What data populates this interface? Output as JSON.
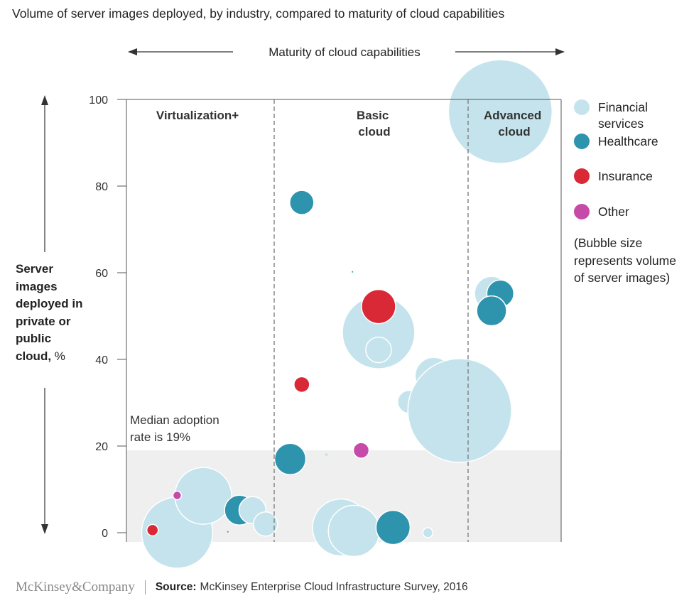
{
  "title": "Volume of server images deployed, by industry, compared to maturity of cloud capabilities",
  "x_axis_label": "Maturity of cloud capabilities",
  "y_axis_label": "Server images deployed in private or public cloud,",
  "y_axis_unit": "%",
  "zones": [
    {
      "lines": [
        "Virtualization+"
      ]
    },
    {
      "lines": [
        "Basic",
        "cloud"
      ]
    },
    {
      "lines": [
        "Advanced",
        "cloud"
      ]
    }
  ],
  "median_note_lines": [
    "Median adoption",
    "rate is 19%"
  ],
  "legend": {
    "items": [
      {
        "label": "Financial services",
        "color": "#c5e3ec"
      },
      {
        "label": "Healthcare",
        "color": "#2e93ad"
      },
      {
        "label": "Insurance",
        "color": "#d92836"
      },
      {
        "label": "Other",
        "color": "#c64aa8"
      }
    ],
    "note": "(Bubble size represents volume of server images)"
  },
  "footer": {
    "brand": "McKinsey&Company",
    "source_label": "Source:",
    "source_text": "McKinsey Enterprise Cloud Infrastructure Survey, 2016"
  },
  "chart_data": {
    "type": "scatter",
    "title": "Volume of server images deployed, by industry, compared to maturity of cloud capabilities",
    "xlabel": "Maturity of cloud capabilities",
    "ylabel": "Server images deployed in private or public cloud, %",
    "ylim": [
      0,
      100
    ],
    "yticks": [
      0,
      20,
      40,
      60,
      80,
      100
    ],
    "median": 19,
    "grid": false,
    "legend_position": "right",
    "colors": {
      "Financial services": "#c5e3ec",
      "Healthcare": "#2e93ad",
      "Insurance": "#d92836",
      "Other": "#c64aa8"
    },
    "zones": [
      "Virtualization+",
      "Basic cloud",
      "Advanced cloud"
    ],
    "points": [
      {
        "industry": "Financial services",
        "maturity": 1.35,
        "y": 0,
        "size": 50
      },
      {
        "industry": "Financial services",
        "maturity": 1.53,
        "y": 8.5,
        "size": 40
      },
      {
        "industry": "Healthcare",
        "maturity": 1.78,
        "y": 5.2,
        "size": 21
      },
      {
        "industry": "Financial services",
        "maturity": 1.87,
        "y": 5.2,
        "size": 19
      },
      {
        "industry": "Financial services",
        "maturity": 1.96,
        "y": 2,
        "size": 17
      },
      {
        "industry": "Insurance",
        "maturity": 1.18,
        "y": 0.6,
        "size": 8
      },
      {
        "industry": "Other",
        "maturity": 1.35,
        "y": 8.6,
        "size": 6
      },
      {
        "industry": "Healthcare",
        "maturity": 1.7,
        "y": 0.2,
        "size": 1
      },
      {
        "industry": "Financial services",
        "maturity": 2.48,
        "y": 1.2,
        "size": 40
      },
      {
        "industry": "Financial services",
        "maturity": 2.57,
        "y": 0.4,
        "size": 36
      },
      {
        "industry": "Healthcare",
        "maturity": 2.84,
        "y": 1.2,
        "size": 24
      },
      {
        "industry": "Financial services",
        "maturity": 3.08,
        "y": 0,
        "size": 7
      },
      {
        "industry": "Healthcare",
        "maturity": 2.13,
        "y": 17,
        "size": 22
      },
      {
        "industry": "Financial services",
        "maturity": 2.38,
        "y": 18,
        "size": 2
      },
      {
        "industry": "Other",
        "maturity": 2.62,
        "y": 19,
        "size": 11
      },
      {
        "industry": "Insurance",
        "maturity": 2.21,
        "y": 34.2,
        "size": 11
      },
      {
        "industry": "Healthcare",
        "maturity": 2.21,
        "y": 76.2,
        "size": 17
      },
      {
        "industry": "Financial services",
        "maturity": 2.74,
        "y": 46.2,
        "size": 51
      },
      {
        "industry": "Financial services",
        "maturity": 2.74,
        "y": 42.2,
        "size": 18
      },
      {
        "industry": "Insurance",
        "maturity": 2.74,
        "y": 52.2,
        "size": 24
      },
      {
        "industry": "Healthcare",
        "maturity": 2.56,
        "y": 60.2,
        "size": 1
      },
      {
        "industry": "Financial services",
        "maturity": 2.95,
        "y": 30.2,
        "size": 16
      },
      {
        "industry": "Financial services",
        "maturity": 3.12,
        "y": 36.2,
        "size": 26
      },
      {
        "industry": "Financial services",
        "maturity": 3.3,
        "y": 28.2,
        "size": 73
      },
      {
        "industry": "Financial services",
        "maturity": 3.58,
        "y": 97.2,
        "size": 73
      },
      {
        "industry": "Financial services",
        "maturity": 3.52,
        "y": 55.2,
        "size": 24
      },
      {
        "industry": "Healthcare",
        "maturity": 3.58,
        "y": 55.2,
        "size": 19
      },
      {
        "industry": "Healthcare",
        "maturity": 3.52,
        "y": 51.2,
        "size": 21
      }
    ]
  }
}
